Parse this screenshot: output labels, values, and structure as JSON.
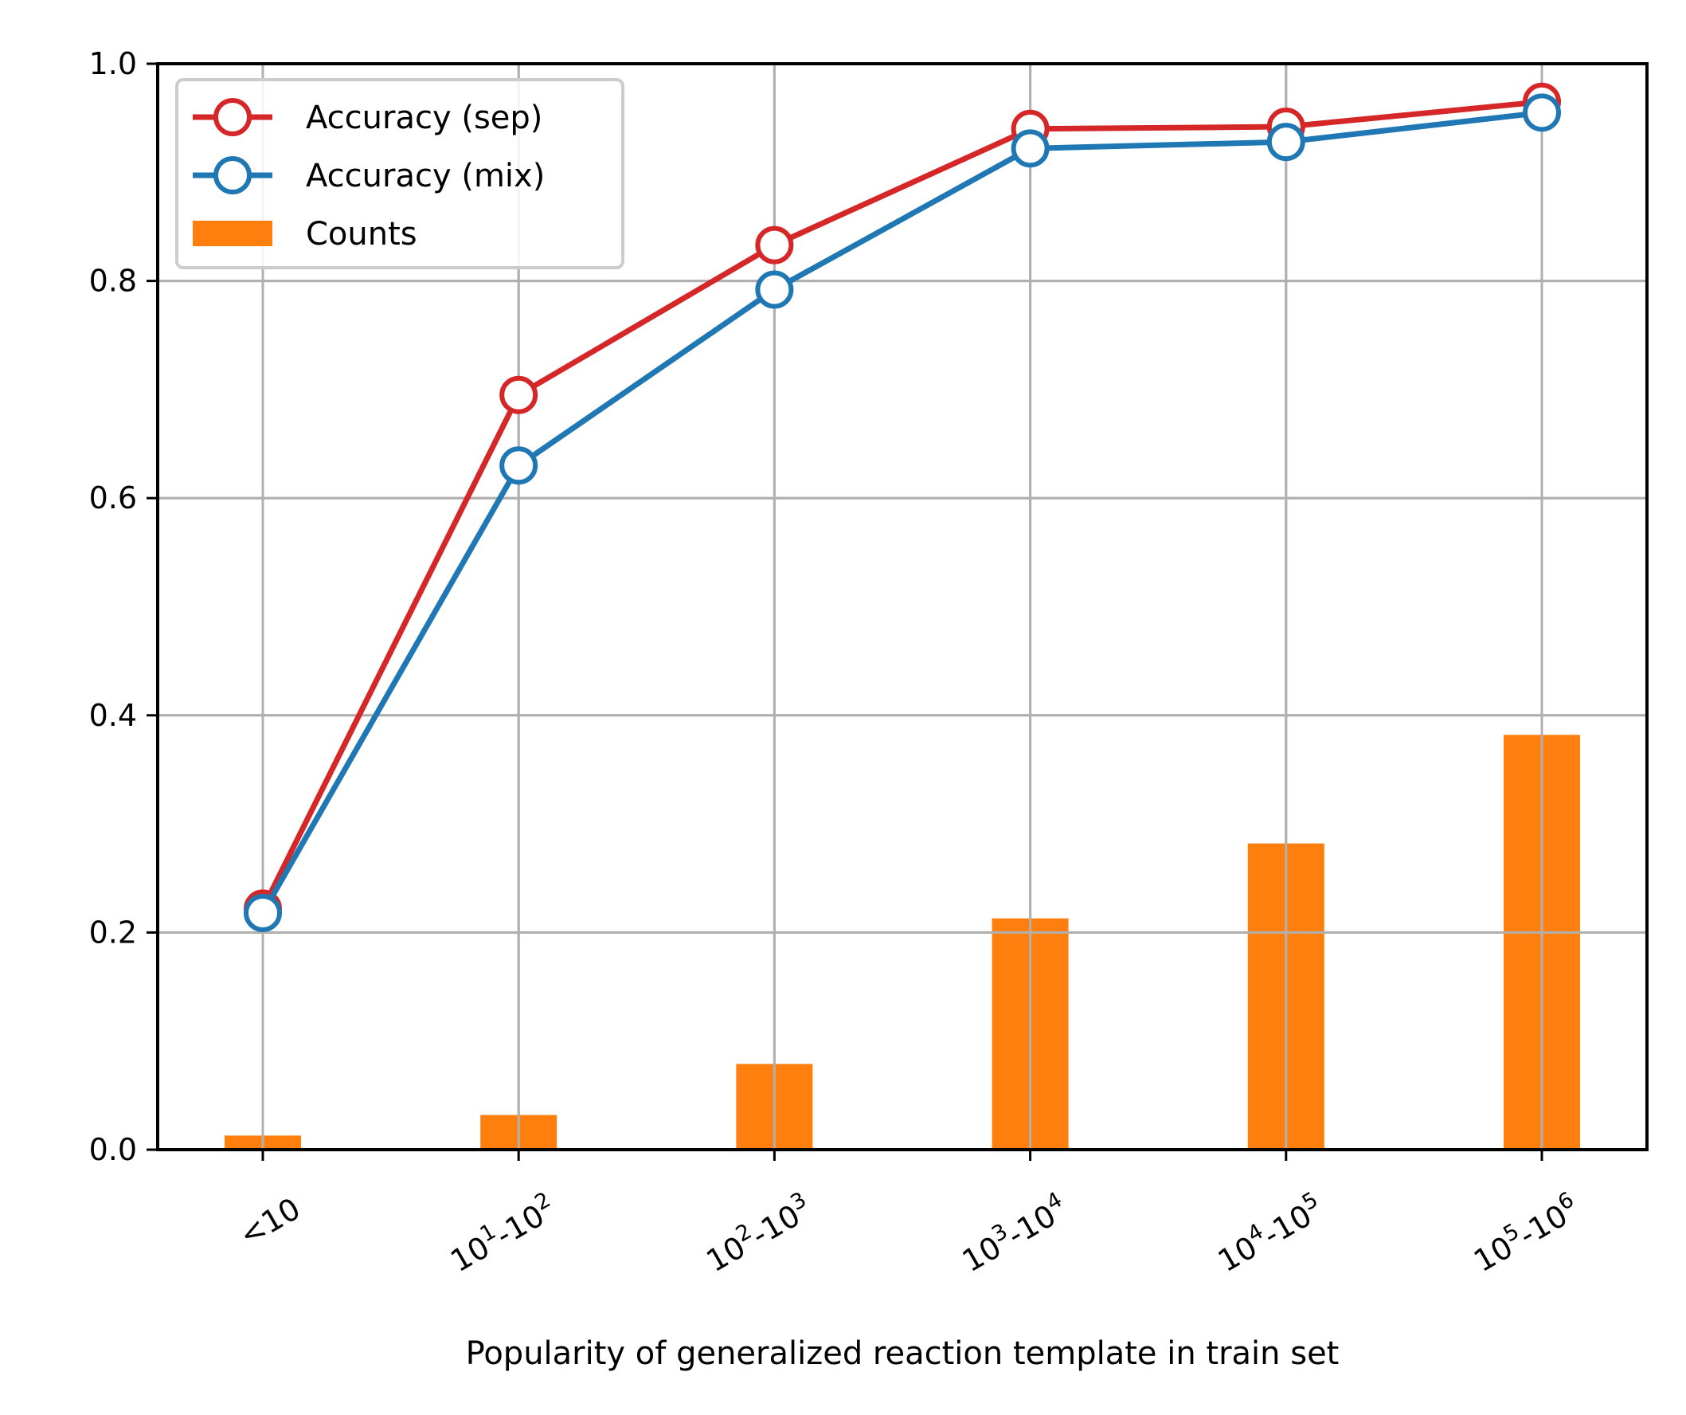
{
  "chart_data": {
    "type": "bar+line",
    "title": "",
    "xlabel": "Popularity of generalized reaction template in train set",
    "ylabel": "",
    "ylim": [
      0,
      1.0
    ],
    "yticks": [
      "0.0",
      "0.2",
      "0.4",
      "0.6",
      "0.8",
      "1.0"
    ],
    "grid": true,
    "legend_position": "top-left",
    "categories": [
      {
        "base": "<10",
        "exp1": "",
        "mid": "",
        "exp2": ""
      },
      {
        "base": "10",
        "exp1": "1",
        "mid": "-10",
        "exp2": "2"
      },
      {
        "base": "10",
        "exp1": "2",
        "mid": "-10",
        "exp2": "3"
      },
      {
        "base": "10",
        "exp1": "3",
        "mid": "-10",
        "exp2": "4"
      },
      {
        "base": "10",
        "exp1": "4",
        "mid": "-10",
        "exp2": "5"
      },
      {
        "base": "10",
        "exp1": "5",
        "mid": "-10",
        "exp2": "6"
      }
    ],
    "series": [
      {
        "name": "Accuracy (sep)",
        "kind": "line",
        "color": "#d62728",
        "values": [
          0.222,
          0.695,
          0.833,
          0.94,
          0.942,
          0.965
        ]
      },
      {
        "name": "Accuracy (mix)",
        "kind": "line",
        "color": "#1f77b4",
        "values": [
          0.218,
          0.63,
          0.792,
          0.922,
          0.928,
          0.955
        ]
      },
      {
        "name": "Counts",
        "kind": "bar",
        "color": "#ff7f0e",
        "values": [
          0.013,
          0.032,
          0.079,
          0.213,
          0.282,
          0.382
        ]
      }
    ]
  }
}
